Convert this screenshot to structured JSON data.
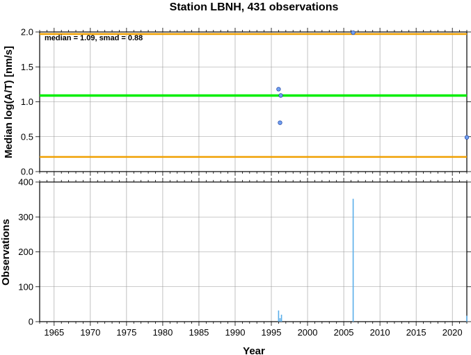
{
  "chart_data": [
    {
      "type": "scatter",
      "title": "Station LBNH, 431 observations",
      "xlabel": "",
      "ylabel": "Median log(A/T) [nm/s]",
      "xlim": [
        1963,
        2022
      ],
      "ylim": [
        0.0,
        2.0
      ],
      "yticks": [
        "0.0",
        "0.5",
        "1.0",
        "1.5",
        "2.0"
      ],
      "grid": true,
      "annotation": "median = 1.09, smad = 0.88",
      "reference_lines": [
        {
          "y": 1.09,
          "color": "#00ee00"
        },
        {
          "y": 1.97,
          "color": "#f0a000"
        },
        {
          "y": 0.21,
          "color": "#f0a000"
        }
      ],
      "points": [
        {
          "x": 1996.0,
          "y": 1.18
        },
        {
          "x": 1996.3,
          "y": 1.09
        },
        {
          "x": 1996.2,
          "y": 0.7
        },
        {
          "x": 2006.3,
          "y": 1.99
        },
        {
          "x": 2022.0,
          "y": 0.49
        }
      ],
      "marker_color": "#6f9ff0"
    },
    {
      "type": "bar",
      "xlabel": "Year",
      "ylabel": "Observations",
      "xlim": [
        1963,
        2022
      ],
      "ylim": [
        0,
        400
      ],
      "xticks": [
        "1965",
        "1970",
        "1975",
        "1980",
        "1985",
        "1990",
        "1995",
        "2000",
        "2005",
        "2010",
        "2015",
        "2020"
      ],
      "yticks": [
        "0",
        "100",
        "200",
        "300",
        "400"
      ],
      "grid": true,
      "bars": [
        {
          "x": 1996.0,
          "value": 32
        },
        {
          "x": 1996.2,
          "value": 10
        },
        {
          "x": 1996.4,
          "value": 20
        },
        {
          "x": 2006.3,
          "value": 352
        },
        {
          "x": 2022.0,
          "value": 17
        }
      ],
      "bar_color": "#5aaeea"
    }
  ]
}
